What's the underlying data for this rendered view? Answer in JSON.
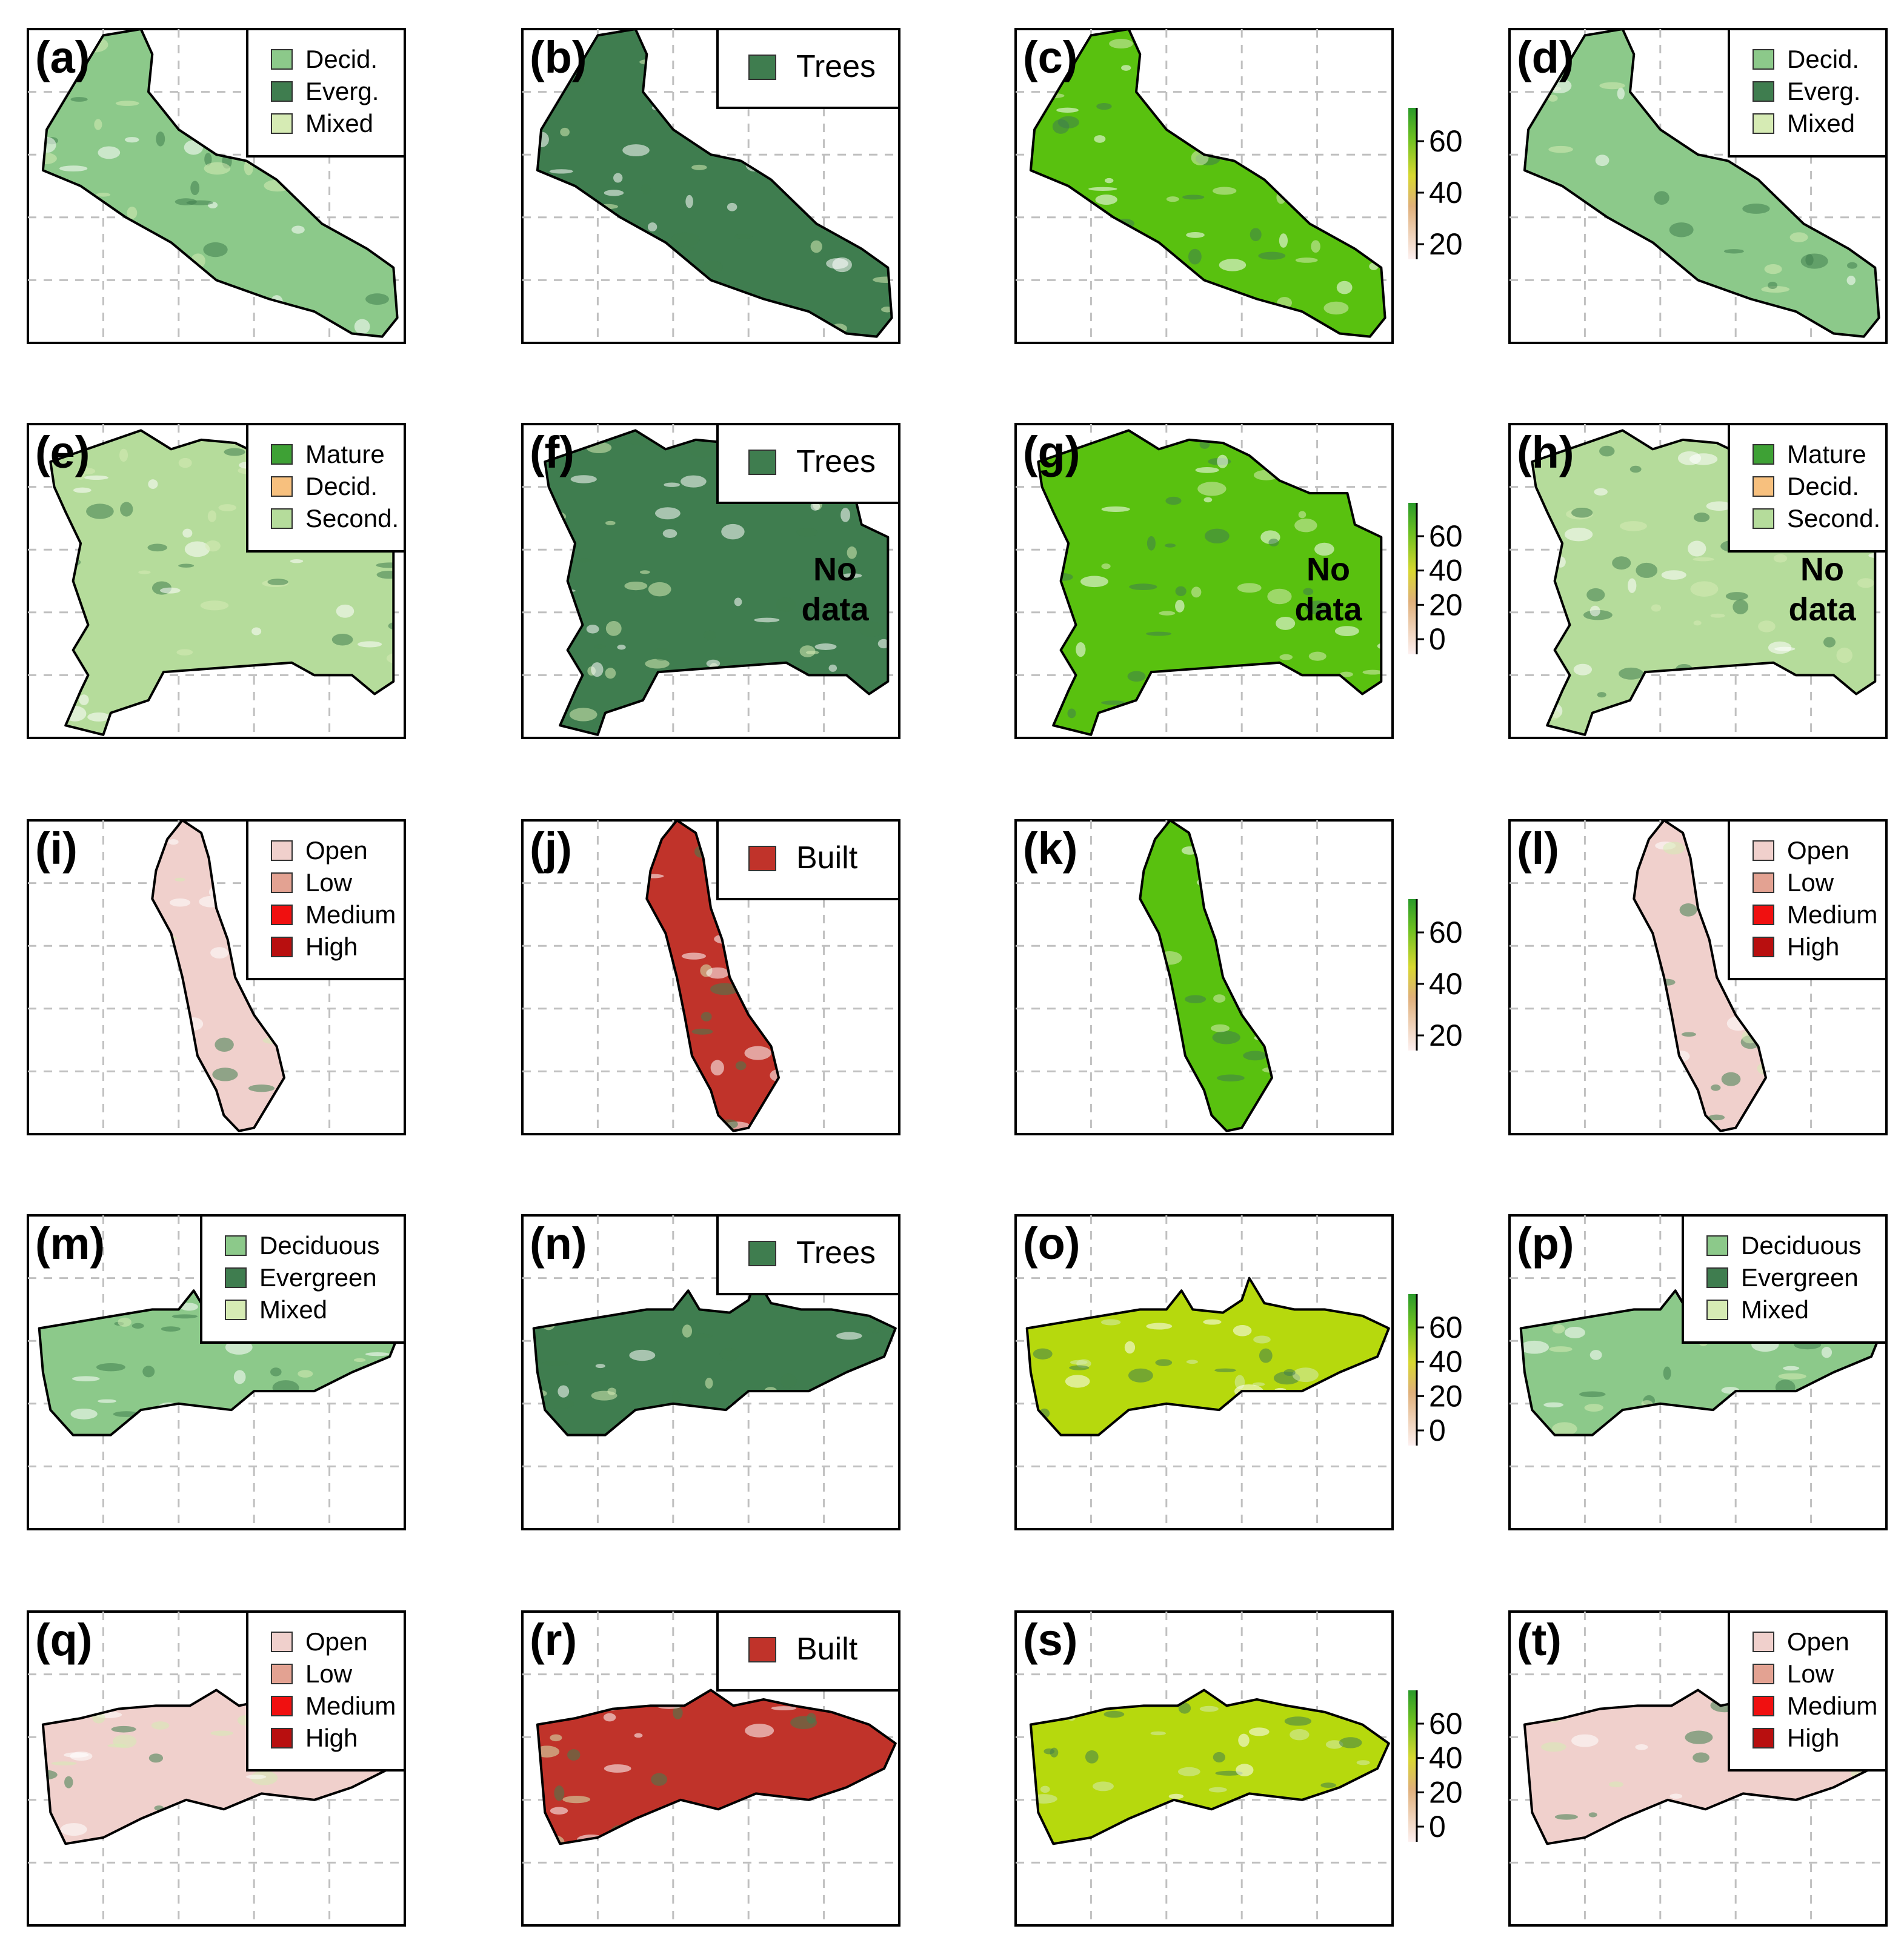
{
  "colors": {
    "decid": "#8cc98a",
    "everg": "#3f7d4f",
    "mixed": "#d6ebb4",
    "trees": "#3f7d4f",
    "mature": "#3ea135",
    "decid_orange": "#f7c07e",
    "second": "#b5dc9b",
    "open": "#f0d0cc",
    "low": "#e3a292",
    "medium": "#f01010",
    "high": "#b80f0f",
    "built": "#c0332a",
    "canopy": "#59c10f",
    "canopy_light": "#b6d90d",
    "border": "#000000",
    "grid": "#c0c0c0"
  },
  "panels": [
    {
      "label": "(a)",
      "shape": "nw_se",
      "fill": "decid",
      "legend": {
        "type": "boxes",
        "items": [
          {
            "text": "Decid.",
            "color": "decid"
          },
          {
            "text": "Everg.",
            "color": "everg"
          },
          {
            "text": "Mixed",
            "color": "mixed"
          }
        ]
      }
    },
    {
      "label": "(b)",
      "shape": "nw_se",
      "fill": "trees",
      "legend": {
        "type": "single",
        "items": [
          {
            "text": "Trees",
            "color": "trees"
          }
        ]
      }
    },
    {
      "label": "(c)",
      "shape": "nw_se",
      "fill": "canopy",
      "colorbar": {
        "ticks": [
          "60",
          "40",
          "20"
        ]
      }
    },
    {
      "label": "(d)",
      "shape": "nw_se",
      "fill": "decid",
      "legend": {
        "type": "boxes",
        "items": [
          {
            "text": "Decid.",
            "color": "decid"
          },
          {
            "text": "Everg.",
            "color": "everg"
          },
          {
            "text": "Mixed",
            "color": "mixed"
          }
        ]
      }
    },
    {
      "label": "(e)",
      "shape": "block",
      "fill": "second",
      "legend": {
        "type": "boxes",
        "items": [
          {
            "text": "Mature",
            "color": "mature"
          },
          {
            "text": "Decid.",
            "color": "decid_orange"
          },
          {
            "text": "Second.",
            "color": "second"
          }
        ]
      }
    },
    {
      "label": "(f)",
      "shape": "block",
      "fill": "trees",
      "nodata": [
        "No",
        "data"
      ],
      "legend": {
        "type": "single",
        "items": [
          {
            "text": "Trees",
            "color": "trees"
          }
        ]
      }
    },
    {
      "label": "(g)",
      "shape": "block",
      "fill": "canopy",
      "nodata": [
        "No",
        "data"
      ],
      "colorbar": {
        "ticks": [
          "60",
          "40",
          "20",
          "0"
        ]
      }
    },
    {
      "label": "(h)",
      "shape": "block",
      "fill": "second",
      "nodata": [
        "No",
        "data"
      ],
      "legend": {
        "type": "boxes",
        "items": [
          {
            "text": "Mature",
            "color": "mature"
          },
          {
            "text": "Decid.",
            "color": "decid_orange"
          },
          {
            "text": "Second.",
            "color": "second"
          }
        ]
      }
    },
    {
      "label": "(i)",
      "shape": "narrow",
      "fill": "open",
      "legend": {
        "type": "boxes",
        "items": [
          {
            "text": "Open",
            "color": "open"
          },
          {
            "text": "Low",
            "color": "low"
          },
          {
            "text": "Medium",
            "color": "medium"
          },
          {
            "text": "High",
            "color": "high"
          }
        ]
      }
    },
    {
      "label": "(j)",
      "shape": "narrow",
      "fill": "built",
      "legend": {
        "type": "single",
        "items": [
          {
            "text": "Built",
            "color": "built"
          }
        ]
      }
    },
    {
      "label": "(k)",
      "shape": "narrow",
      "fill": "canopy",
      "colorbar": {
        "ticks": [
          "60",
          "40",
          "20"
        ]
      }
    },
    {
      "label": "(l)",
      "shape": "narrow",
      "fill": "open",
      "legend": {
        "type": "boxes",
        "items": [
          {
            "text": "Open",
            "color": "open"
          },
          {
            "text": "Low",
            "color": "low"
          },
          {
            "text": "Medium",
            "color": "medium"
          },
          {
            "text": "High",
            "color": "high"
          }
        ]
      }
    },
    {
      "label": "(m)",
      "shape": "wide",
      "fill": "decid",
      "legend": {
        "type": "boxes",
        "items": [
          {
            "text": "Deciduous",
            "color": "decid"
          },
          {
            "text": "Evergreen",
            "color": "everg"
          },
          {
            "text": "Mixed",
            "color": "mixed"
          }
        ]
      }
    },
    {
      "label": "(n)",
      "shape": "wide",
      "fill": "trees",
      "legend": {
        "type": "single",
        "items": [
          {
            "text": "Trees",
            "color": "trees"
          }
        ]
      }
    },
    {
      "label": "(o)",
      "shape": "wide",
      "fill": "canopy_light",
      "colorbar": {
        "ticks": [
          "60",
          "40",
          "20",
          "0"
        ]
      }
    },
    {
      "label": "(p)",
      "shape": "wide",
      "fill": "decid",
      "legend": {
        "type": "boxes",
        "items": [
          {
            "text": "Deciduous",
            "color": "decid"
          },
          {
            "text": "Evergreen",
            "color": "everg"
          },
          {
            "text": "Mixed",
            "color": "mixed"
          }
        ]
      }
    },
    {
      "label": "(q)",
      "shape": "wide2",
      "fill": "open",
      "legend": {
        "type": "boxes",
        "items": [
          {
            "text": "Open",
            "color": "open"
          },
          {
            "text": "Low",
            "color": "low"
          },
          {
            "text": "Medium",
            "color": "medium"
          },
          {
            "text": "High",
            "color": "high"
          }
        ]
      }
    },
    {
      "label": "(r)",
      "shape": "wide2",
      "fill": "built",
      "legend": {
        "type": "single",
        "items": [
          {
            "text": "Built",
            "color": "built"
          }
        ]
      }
    },
    {
      "label": "(s)",
      "shape": "wide2",
      "fill": "canopy_light",
      "colorbar": {
        "ticks": [
          "60",
          "40",
          "20",
          "0"
        ]
      }
    },
    {
      "label": "(t)",
      "shape": "wide2",
      "fill": "open",
      "legend": {
        "type": "boxes",
        "items": [
          {
            "text": "Open",
            "color": "open"
          },
          {
            "text": "Low",
            "color": "low"
          },
          {
            "text": "Medium",
            "color": "medium"
          },
          {
            "text": "High",
            "color": "high"
          }
        ]
      }
    }
  ]
}
